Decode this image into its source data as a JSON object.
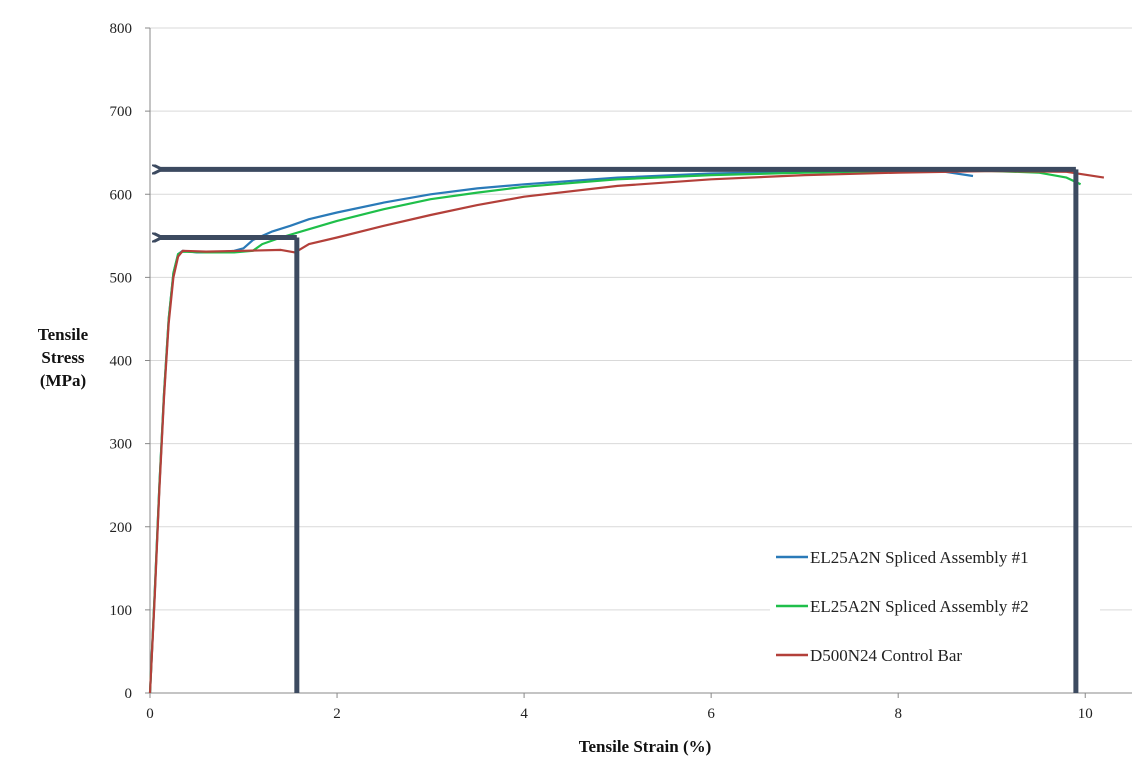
{
  "colors": {
    "series_blue": "#2a7ab8",
    "series_green": "#1fbf4a",
    "series_red": "#b3403a",
    "annotation": "#3c4a60",
    "grid": "#d9d9d9",
    "axis": "#888888"
  },
  "chart_data": {
    "type": "line",
    "title": "",
    "xlabel": "Tensile Strain (%)",
    "ylabel": [
      "Tensile",
      "Stress",
      "(MPa)"
    ],
    "xlim": [
      0,
      10.5
    ],
    "ylim": [
      0,
      800
    ],
    "xticks": [
      0,
      2,
      4,
      6,
      8,
      10
    ],
    "yticks": [
      0,
      100,
      200,
      300,
      400,
      500,
      600,
      700,
      800
    ],
    "grid": true,
    "legend_position": "bottom-right",
    "series": [
      {
        "name": "EL25A2N Spliced Assembly #1",
        "color": "#2a7ab8",
        "points": [
          [
            0,
            0
          ],
          [
            0.05,
            120
          ],
          [
            0.1,
            250
          ],
          [
            0.15,
            360
          ],
          [
            0.2,
            450
          ],
          [
            0.25,
            505
          ],
          [
            0.3,
            528
          ],
          [
            0.35,
            532
          ],
          [
            0.5,
            530
          ],
          [
            0.7,
            530
          ],
          [
            0.9,
            532
          ],
          [
            1.0,
            535
          ],
          [
            1.1,
            545
          ],
          [
            1.3,
            555
          ],
          [
            1.5,
            562
          ],
          [
            1.7,
            570
          ],
          [
            2.0,
            578
          ],
          [
            2.5,
            590
          ],
          [
            3.0,
            600
          ],
          [
            3.5,
            607
          ],
          [
            4.0,
            612
          ],
          [
            5.0,
            620
          ],
          [
            6.0,
            625
          ],
          [
            7.0,
            627
          ],
          [
            8.0,
            628
          ],
          [
            8.5,
            627
          ],
          [
            8.8,
            622
          ]
        ]
      },
      {
        "name": "EL25A2N Spliced Assembly #2",
        "color": "#1fbf4a",
        "points": [
          [
            0,
            0
          ],
          [
            0.05,
            120
          ],
          [
            0.1,
            250
          ],
          [
            0.15,
            360
          ],
          [
            0.2,
            450
          ],
          [
            0.25,
            505
          ],
          [
            0.3,
            528
          ],
          [
            0.35,
            531
          ],
          [
            0.6,
            530
          ],
          [
            0.9,
            530
          ],
          [
            1.1,
            532
          ],
          [
            1.2,
            540
          ],
          [
            1.4,
            548
          ],
          [
            1.7,
            558
          ],
          [
            2.0,
            568
          ],
          [
            2.5,
            582
          ],
          [
            3.0,
            594
          ],
          [
            3.5,
            602
          ],
          [
            4.0,
            609
          ],
          [
            5.0,
            618
          ],
          [
            6.0,
            623
          ],
          [
            7.0,
            626
          ],
          [
            8.0,
            628
          ],
          [
            9.0,
            628
          ],
          [
            9.5,
            626
          ],
          [
            9.8,
            620
          ],
          [
            9.95,
            612
          ]
        ]
      },
      {
        "name": "D500N24 Control Bar",
        "color": "#b3403a",
        "points": [
          [
            0,
            0
          ],
          [
            0.05,
            115
          ],
          [
            0.1,
            245
          ],
          [
            0.15,
            355
          ],
          [
            0.2,
            445
          ],
          [
            0.25,
            500
          ],
          [
            0.3,
            525
          ],
          [
            0.35,
            532
          ],
          [
            0.6,
            531
          ],
          [
            1.0,
            532
          ],
          [
            1.4,
            533
          ],
          [
            1.55,
            530
          ],
          [
            1.7,
            540
          ],
          [
            2.0,
            548
          ],
          [
            2.5,
            562
          ],
          [
            3.0,
            575
          ],
          [
            3.5,
            587
          ],
          [
            4.0,
            597
          ],
          [
            5.0,
            610
          ],
          [
            6.0,
            618
          ],
          [
            7.0,
            623
          ],
          [
            8.0,
            626
          ],
          [
            9.0,
            628
          ],
          [
            9.8,
            627
          ],
          [
            10.2,
            620
          ]
        ]
      }
    ],
    "annotations": {
      "yield_marker": {
        "strain": 1.57,
        "stress": 548
      },
      "ultimate_marker": {
        "strain": 9.9,
        "stress": 630
      }
    }
  }
}
